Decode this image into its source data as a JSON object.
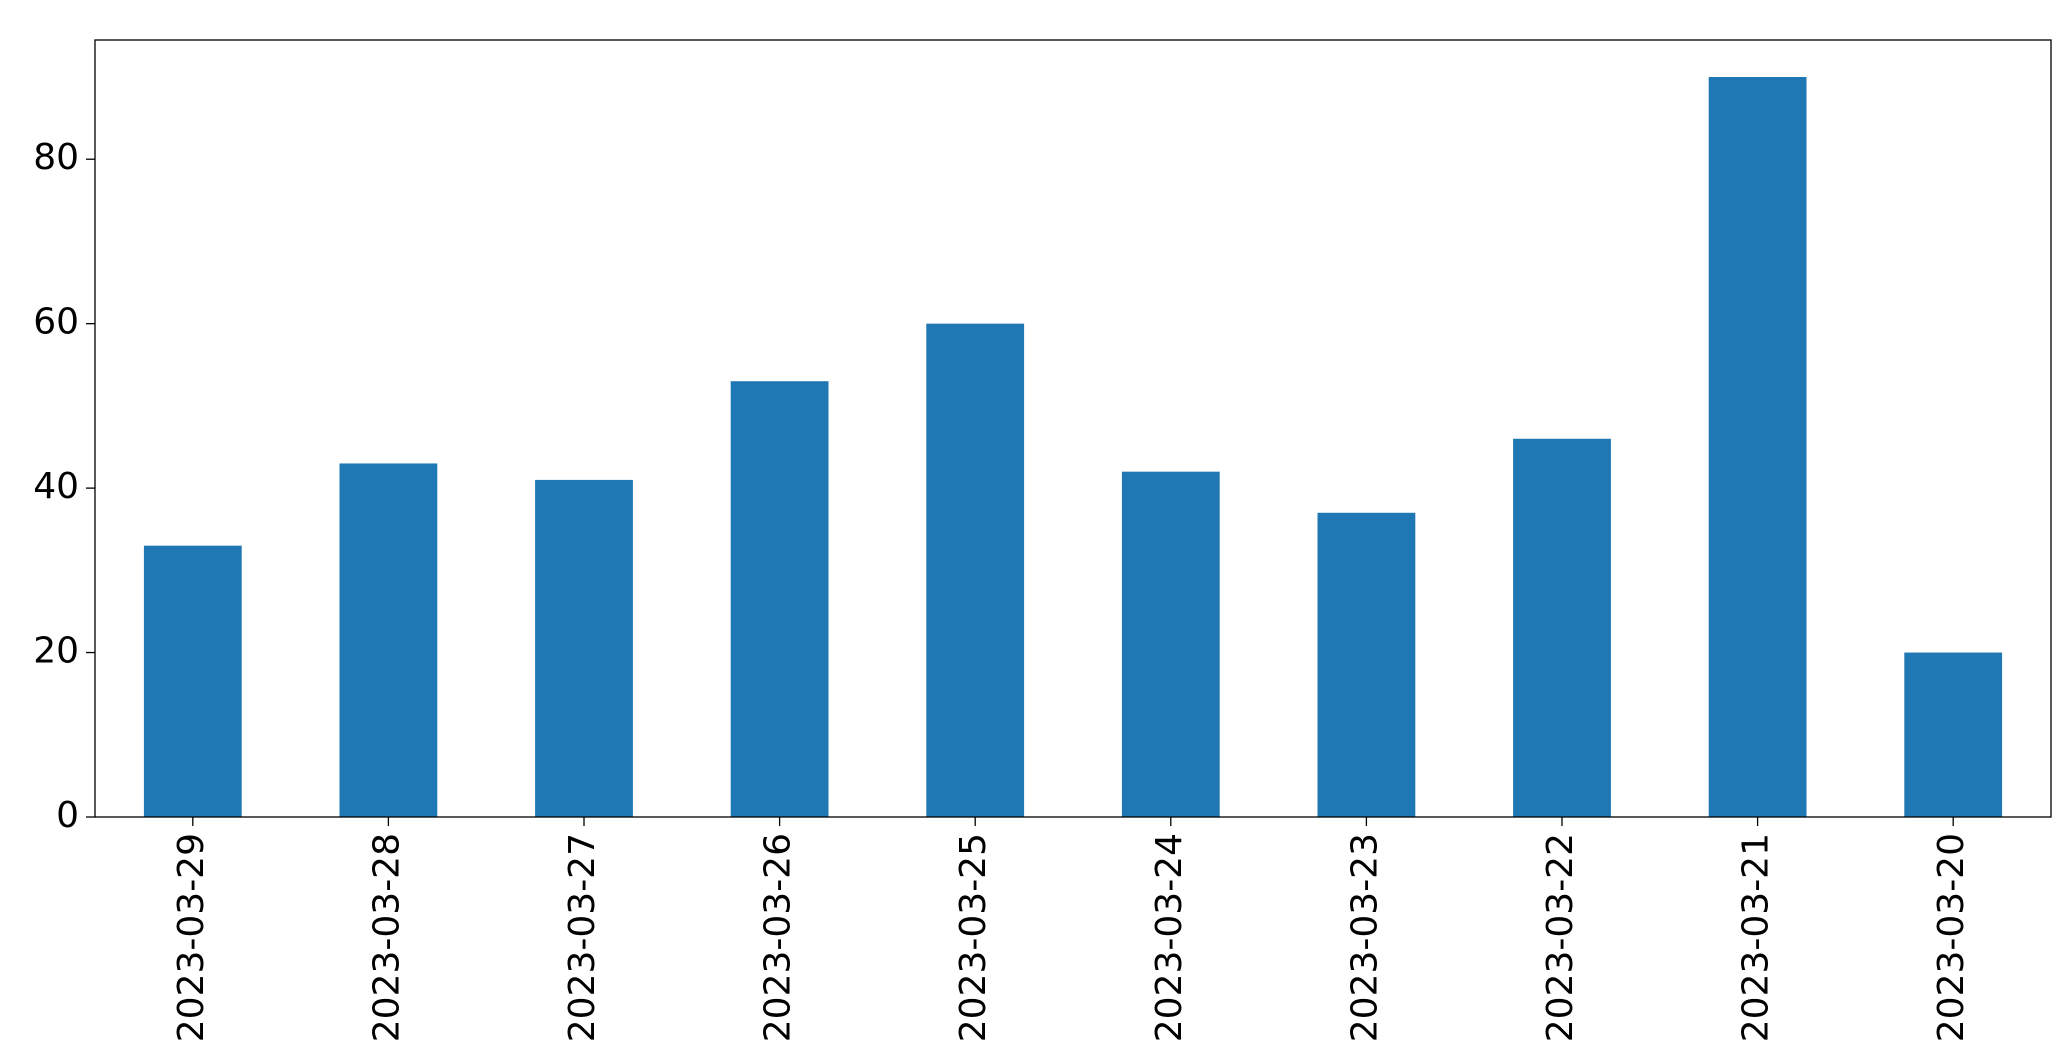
{
  "chart_data": {
    "type": "bar",
    "categories": [
      "2023-03-29",
      "2023-03-28",
      "2023-03-27",
      "2023-03-26",
      "2023-03-25",
      "2023-03-24",
      "2023-03-23",
      "2023-03-22",
      "2023-03-21",
      "2023-03-20"
    ],
    "values": [
      33,
      43,
      41,
      53,
      60,
      42,
      37,
      46,
      90,
      20
    ],
    "color": "#1f77b4",
    "ylim": [
      0,
      94.5
    ],
    "yticks": [
      0,
      20,
      40,
      60,
      80
    ],
    "grid": false
  }
}
